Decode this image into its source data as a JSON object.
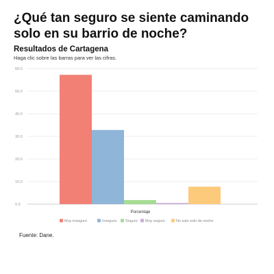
{
  "header": {
    "title": "¿Qué tan seguro se siente caminando solo en su barrio de noche?",
    "subtitle": "Resultados de Cartagena",
    "instruction": "Haga clic sobre las barras para ver las cifras."
  },
  "footer": {
    "source": "Fuente: Dane."
  },
  "chart_data": {
    "type": "bar",
    "title": "",
    "xlabel": "Porcentaje",
    "ylabel": "",
    "ylim": [
      0,
      60
    ],
    "yticks": [
      "0.0",
      "10.0",
      "20.0",
      "30.0",
      "40.0",
      "50.0",
      "60.0"
    ],
    "grid": true,
    "legend_position": "bottom",
    "series": [
      {
        "name": "Muy inseguro",
        "value": 57.2,
        "color": "#f28074"
      },
      {
        "name": "Inseguro",
        "value": 32.8,
        "color": "#8fb5d9"
      },
      {
        "name": "Seguro",
        "value": 1.8,
        "color": "#a6dc94"
      },
      {
        "name": "Muy seguro",
        "value": 0.5,
        "color": "#c9aedb"
      },
      {
        "name": "No sale solo de noche",
        "value": 7.7,
        "color": "#fdc97a"
      }
    ]
  }
}
